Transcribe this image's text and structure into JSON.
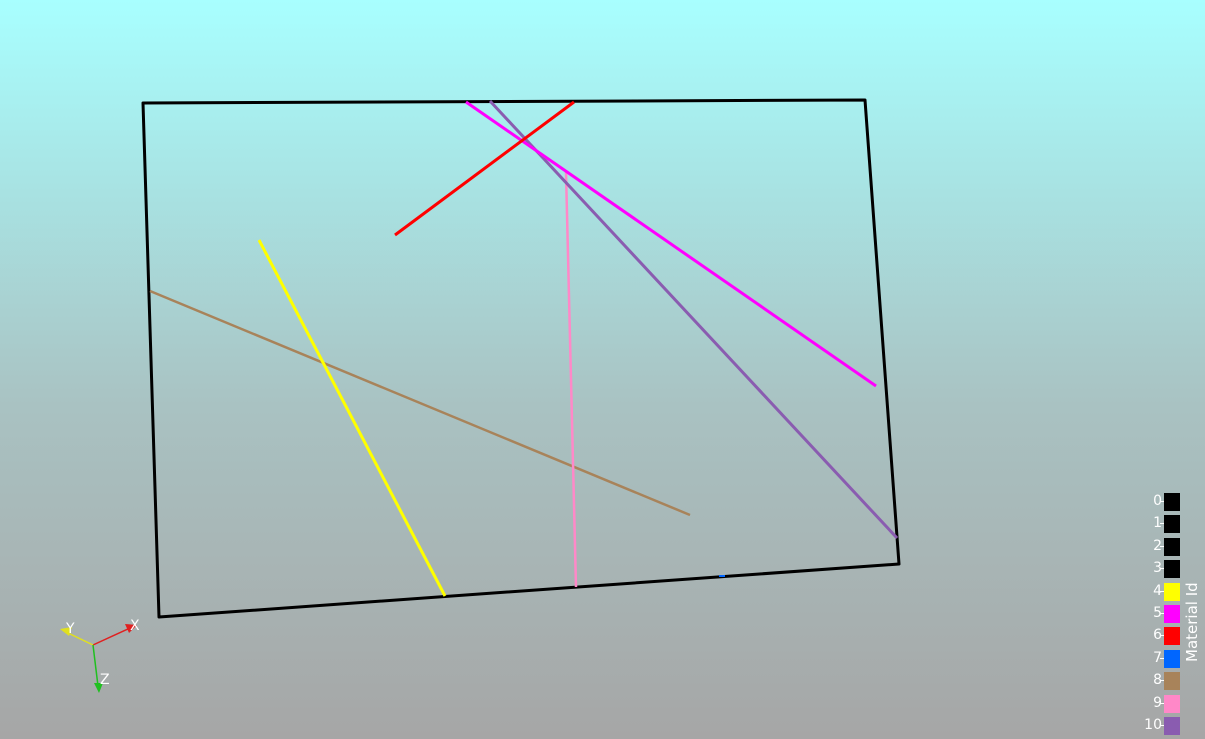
{
  "viewport": {
    "background_top": "#a8ffff",
    "background_bottom": "#a6a6a6"
  },
  "scene": {
    "frame_color": "#000000",
    "fractures": [
      {
        "material_id": 4,
        "color": "#ffff00"
      },
      {
        "material_id": 5,
        "color": "#ff00ff"
      },
      {
        "material_id": 6,
        "color": "#ff0000"
      },
      {
        "material_id": 7,
        "color": "#0066ff"
      },
      {
        "material_id": 8,
        "color": "#a8835a"
      },
      {
        "material_id": 9,
        "color": "#ff88c8"
      },
      {
        "material_id": 10,
        "color": "#8a5cb0"
      }
    ]
  },
  "orientation_axes": {
    "x_label": "X",
    "y_label": "Y",
    "z_label": "Z",
    "x_color": "#e02020",
    "y_color": "#e0e020",
    "z_color": "#20c020"
  },
  "legend": {
    "title": "Material Id",
    "entries": [
      {
        "label": "0",
        "color": "#000000"
      },
      {
        "label": "1",
        "color": "#000000"
      },
      {
        "label": "2",
        "color": "#000000"
      },
      {
        "label": "3",
        "color": "#000000"
      },
      {
        "label": "4",
        "color": "#ffff00"
      },
      {
        "label": "5",
        "color": "#ff00ff"
      },
      {
        "label": "6",
        "color": "#ff0000"
      },
      {
        "label": "7",
        "color": "#0066ff"
      },
      {
        "label": "8",
        "color": "#a8835a"
      },
      {
        "label": "9",
        "color": "#ff88c8"
      },
      {
        "label": "10",
        "color": "#8a5cb0"
      }
    ]
  }
}
